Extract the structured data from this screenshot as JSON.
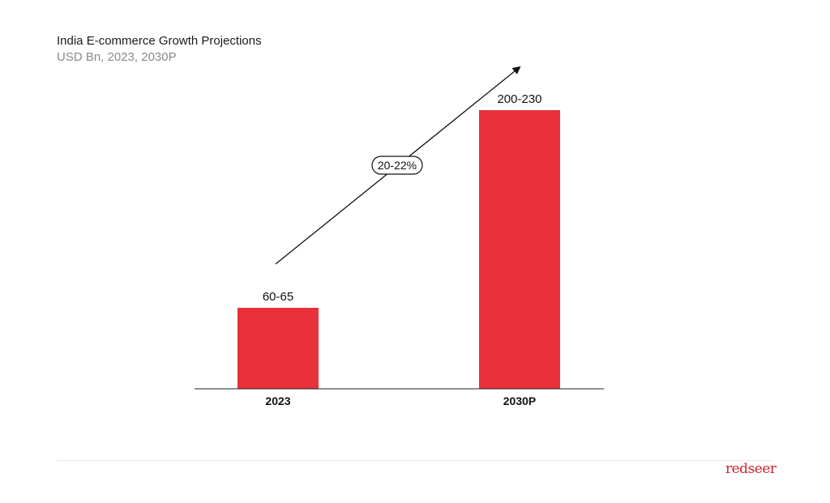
{
  "chart_data": {
    "type": "bar",
    "title": "India E-commerce Growth Projections",
    "subtitle": "USD Bn, 2023, 2030P",
    "categories": [
      "2023",
      "2030P"
    ],
    "values": [
      62.5,
      215
    ],
    "value_ranges": [
      [
        60,
        65
      ],
      [
        200,
        230
      ]
    ],
    "data_labels": [
      "60-65",
      "200-230"
    ],
    "xlabel": "",
    "ylabel": "",
    "ylim": [
      0,
      250
    ],
    "grid": false,
    "legend": "none",
    "bar_color": "#e8313a",
    "annotation": {
      "type": "growth-arrow",
      "label": "20-22%"
    }
  },
  "brand": {
    "name": "redseer",
    "color": "#c9242b"
  }
}
